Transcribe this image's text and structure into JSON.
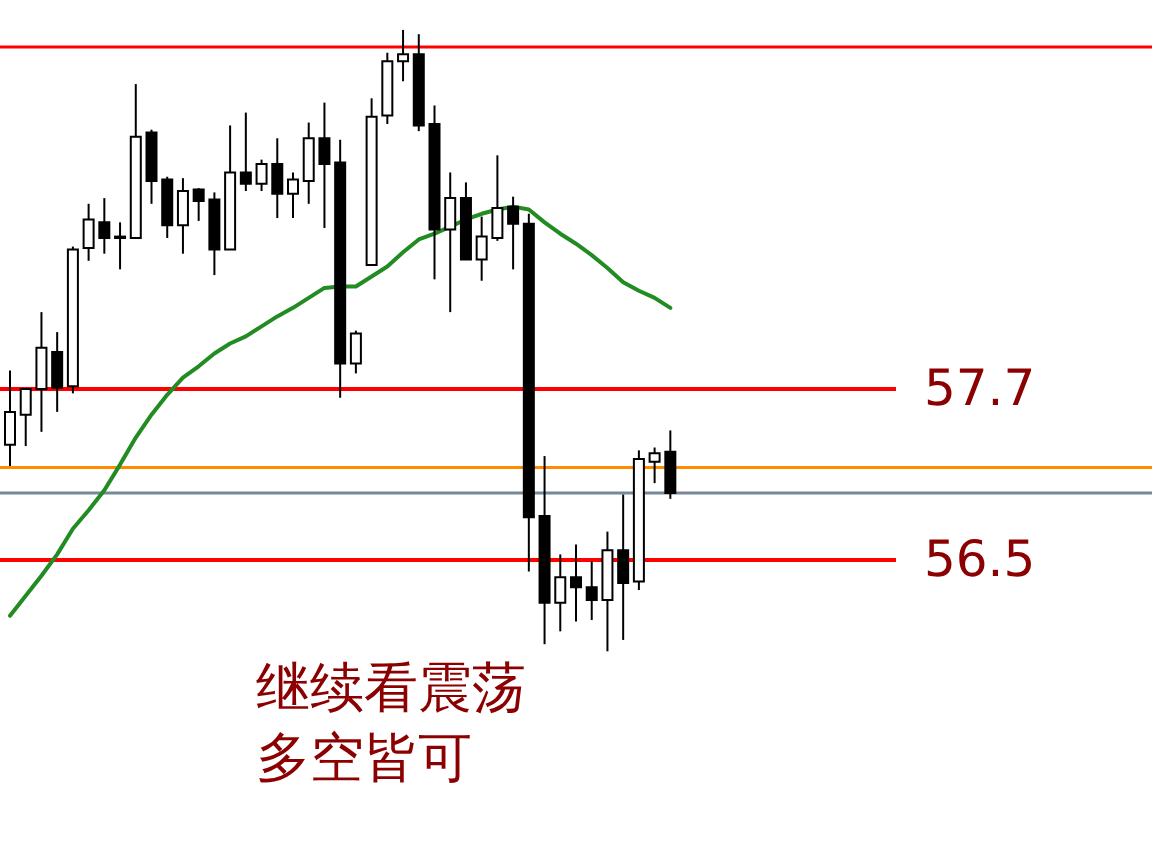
{
  "chart_data": {
    "type": "candlestick",
    "color": "#000000",
    "tick_labels": false,
    "categories": [
      null,
      null,
      null,
      null,
      null,
      null,
      null,
      null,
      null,
      null,
      null,
      null,
      null,
      null,
      null,
      null,
      null,
      null,
      null,
      null,
      null,
      null,
      null,
      null,
      null,
      null,
      null,
      null,
      null,
      null,
      null,
      null,
      null,
      null,
      null,
      null,
      null,
      null,
      null,
      null,
      null,
      null,
      null,
      null,
      null,
      null,
      null,
      null,
      null,
      null,
      null,
      null,
      null,
      null,
      null,
      null,
      null,
      null,
      null,
      null,
      null,
      null,
      null,
      null,
      null,
      null,
      null,
      null,
      null,
      null,
      null,
      null,
      null
    ],
    "ohlc": [
      [
        57.31,
        57.83,
        57.16,
        57.54
      ],
      [
        57.52,
        57.7,
        57.3,
        57.7
      ],
      [
        57.7,
        58.24,
        57.4,
        57.99
      ],
      [
        57.96,
        58.1,
        57.54,
        57.71
      ],
      [
        57.72,
        58.7,
        57.67,
        58.68
      ],
      [
        58.69,
        59.0,
        58.6,
        58.89
      ],
      [
        58.87,
        59.04,
        58.65,
        58.76
      ],
      [
        58.76,
        58.87,
        58.54,
        58.77
      ],
      [
        58.76,
        59.84,
        58.76,
        59.47
      ],
      [
        59.5,
        59.52,
        59.0,
        59.16
      ],
      [
        59.17,
        59.19,
        58.76,
        58.85
      ],
      [
        58.85,
        59.18,
        58.65,
        59.09
      ],
      [
        59.1,
        59.11,
        58.88,
        59.02
      ],
      [
        59.03,
        59.08,
        58.5,
        58.68
      ],
      [
        58.68,
        59.55,
        58.68,
        59.22
      ],
      [
        59.22,
        59.64,
        59.09,
        59.14
      ],
      [
        59.14,
        59.31,
        59.09,
        59.28
      ],
      [
        59.28,
        59.46,
        58.9,
        59.07
      ],
      [
        59.07,
        59.22,
        58.9,
        59.17
      ],
      [
        59.16,
        59.57,
        59.0,
        59.46
      ],
      [
        59.46,
        59.71,
        58.83,
        59.28
      ],
      [
        59.29,
        59.45,
        57.64,
        57.88
      ],
      [
        57.88,
        58.11,
        57.81,
        58.09
      ],
      [
        58.57,
        59.74,
        58.57,
        59.61
      ],
      [
        59.62,
        60.06,
        59.56,
        60.0
      ],
      [
        60.0,
        60.22,
        59.86,
        60.05
      ],
      [
        60.05,
        60.19,
        59.51,
        59.55
      ],
      [
        59.56,
        59.69,
        58.47,
        58.82
      ],
      [
        58.82,
        59.22,
        58.24,
        59.04
      ],
      [
        59.04,
        59.15,
        58.61,
        58.61
      ],
      [
        58.61,
        58.91,
        58.46,
        58.77
      ],
      [
        58.76,
        59.34,
        58.74,
        58.97
      ],
      [
        58.98,
        59.05,
        58.54,
        58.86
      ],
      [
        58.86,
        58.93,
        56.42,
        56.8
      ],
      [
        56.81,
        57.23,
        55.91,
        56.2
      ],
      [
        56.2,
        56.54,
        56.0,
        56.38
      ],
      [
        56.38,
        56.61,
        56.07,
        56.31
      ],
      [
        56.31,
        56.49,
        56.08,
        56.22
      ],
      [
        56.22,
        56.7,
        55.86,
        56.57
      ],
      [
        56.57,
        56.96,
        55.94,
        56.34
      ],
      [
        56.35,
        57.27,
        56.29,
        57.21
      ],
      [
        57.19,
        57.29,
        57.04,
        57.25
      ],
      [
        57.26,
        57.41,
        56.93,
        56.97
      ],
      null,
      null,
      null,
      null,
      null,
      null,
      null,
      null,
      null,
      null,
      null,
      null,
      null,
      null,
      null,
      null,
      null,
      null,
      null,
      null,
      null,
      null,
      null,
      null,
      null,
      null,
      null,
      null,
      null,
      null
    ],
    "series": [
      {
        "type": "line",
        "color": "#228b22",
        "values": [
          56.11,
          56.25,
          56.39,
          56.54,
          56.72,
          56.85,
          56.99,
          57.17,
          57.36,
          57.52,
          57.66,
          57.78,
          57.86,
          57.95,
          58.02,
          58.07,
          58.14,
          58.21,
          58.27,
          58.34,
          58.41,
          58.42,
          58.42,
          58.49,
          58.56,
          58.66,
          58.75,
          58.79,
          58.84,
          58.89,
          58.93,
          58.96,
          58.98,
          58.96,
          58.87,
          58.79,
          58.72,
          58.64,
          58.55,
          58.45,
          58.39,
          58.34,
          58.27,
          null,
          null,
          null,
          null,
          null,
          null,
          null,
          null,
          null,
          null,
          null,
          null,
          null,
          null,
          null,
          null,
          null,
          null,
          null,
          null,
          null,
          null,
          null,
          null,
          null,
          null,
          null,
          null,
          null,
          null
        ]
      }
    ],
    "ylim": [
      54.48,
      60.43
    ],
    "ref_lines": [
      {
        "axis": "y",
        "value": 60.1,
        "color": "#ff0000"
      },
      {
        "axis": "y",
        "value": 57.7,
        "label": "57.7",
        "color": "#ff0000"
      },
      {
        "axis": "y",
        "value": 57.15,
        "color": "#ff8c00"
      },
      {
        "axis": "y",
        "value": 56.97,
        "color": "#778899"
      },
      {
        "axis": "y",
        "value": 56.5,
        "label": "56.5",
        "color": "#ff0000"
      }
    ],
    "annotations": [
      "继续看震荡",
      "多空皆可"
    ]
  }
}
